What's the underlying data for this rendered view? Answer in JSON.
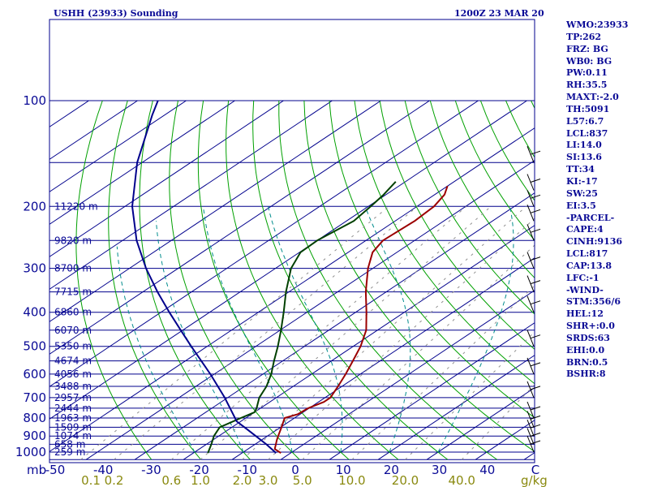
{
  "chart_data": {
    "type": "line",
    "title": "USHH (23933) Sounding",
    "time_label": "1200Z 23 MAR 20",
    "pressure_unit_label": "mb",
    "mixing_ratio_unit_label": "g/kg",
    "x_axis": "temperature (°C), skew-T",
    "y_axis": "pressure (mb), log scale",
    "xlim": [
      -50,
      50
    ],
    "ylim": [
      1050,
      100
    ],
    "temperature_ticks": [
      "-50",
      "-40",
      "-30",
      "-20",
      "-10",
      "0",
      "10",
      "20",
      "30",
      "40",
      "C"
    ],
    "mixing_ratio_ticks": [
      "0.1",
      "0.2",
      "0.6",
      "1.0",
      "2.0",
      "3.0",
      "5.0",
      "10.0",
      "20.0",
      "40.0"
    ],
    "pressure_levels": [
      "100",
      "200",
      "300",
      "400",
      "500",
      "600",
      "700",
      "800",
      "900",
      "1000"
    ],
    "height_labels": [
      {
        "p": 200,
        "label": "11220 m"
      },
      {
        "p": 250,
        "label": "9820 m"
      },
      {
        "p": 300,
        "label": "8700 m"
      },
      {
        "p": 350,
        "label": "7715 m"
      },
      {
        "p": 400,
        "label": "6860 m"
      },
      {
        "p": 450,
        "label": "6070 m"
      },
      {
        "p": 500,
        "label": "5350 m"
      },
      {
        "p": 550,
        "label": "4674 m"
      },
      {
        "p": 600,
        "label": "4056 m"
      },
      {
        "p": 650,
        "label": "3488 m"
      },
      {
        "p": 700,
        "label": "2957 m"
      },
      {
        "p": 750,
        "label": "2444 m"
      },
      {
        "p": 800,
        "label": "1963 m"
      },
      {
        "p": 850,
        "label": "1509 m"
      },
      {
        "p": 900,
        "label": "1074 m"
      },
      {
        "p": 950,
        "label": "658 m"
      },
      {
        "p": 1000,
        "label": "259 m"
      }
    ],
    "series": [
      {
        "name": "temperature",
        "color": "#9b0000",
        "points": [
          [
            1006,
            -2
          ],
          [
            980,
            -4.5
          ],
          [
            925,
            -6.8
          ],
          [
            900,
            -7.8
          ],
          [
            850,
            -9.8
          ],
          [
            800,
            -12.0
          ],
          [
            780,
            -10.5
          ],
          [
            750,
            -10.2
          ],
          [
            720,
            -8.9
          ],
          [
            700,
            -8.9
          ],
          [
            650,
            -10.8
          ],
          [
            600,
            -13.0
          ],
          [
            550,
            -15.6
          ],
          [
            500,
            -18.5
          ],
          [
            450,
            -22.3
          ],
          [
            400,
            -27.8
          ],
          [
            350,
            -34.2
          ],
          [
            300,
            -41.0
          ],
          [
            270,
            -45.0
          ],
          [
            250,
            -46.5
          ],
          [
            220,
            -46.0
          ],
          [
            200,
            -46.5
          ],
          [
            185,
            -48.0
          ],
          [
            175,
            -50.0
          ]
        ]
      },
      {
        "name": "dewpoint",
        "color": "#004000",
        "points": [
          [
            1006,
            -17
          ],
          [
            950,
            -19
          ],
          [
            900,
            -21
          ],
          [
            850,
            -22.5
          ],
          [
            800,
            -21.0
          ],
          [
            770,
            -20.0
          ],
          [
            750,
            -20.8
          ],
          [
            700,
            -23.5
          ],
          [
            650,
            -25.5
          ],
          [
            600,
            -28.3
          ],
          [
            550,
            -31.8
          ],
          [
            500,
            -35.5
          ],
          [
            450,
            -39.8
          ],
          [
            400,
            -44.8
          ],
          [
            350,
            -50.6
          ],
          [
            300,
            -56.8
          ],
          [
            270,
            -59.8
          ],
          [
            250,
            -60.0
          ],
          [
            220,
            -58.5
          ],
          [
            200,
            -59.5
          ],
          [
            185,
            -60.5
          ],
          [
            170,
            -62.0
          ]
        ]
      },
      {
        "name": "parcel",
        "color": "#00008c",
        "points": [
          [
            1006,
            -3
          ],
          [
            950,
            -7.7
          ],
          [
            900,
            -12.4
          ],
          [
            850,
            -17.4
          ],
          [
            817,
            -20.9
          ],
          [
            800,
            -22.2
          ],
          [
            700,
            -30.6
          ],
          [
            600,
            -40.8
          ],
          [
            500,
            -53.3
          ],
          [
            450,
            -60.4
          ],
          [
            400,
            -68.3
          ],
          [
            350,
            -77.0
          ],
          [
            300,
            -86.6
          ],
          [
            250,
            -97.1
          ],
          [
            200,
            -108.5
          ],
          [
            150,
            -121.0
          ],
          [
            110,
            -132.5
          ],
          [
            100,
            -135.8
          ]
        ]
      }
    ]
  },
  "params": [
    "WMO:23933",
    "TP:262",
    "FRZ: BG",
    "WB0: BG",
    "PW:0.11",
    "RH:35.5",
    "MAXT:-2.0",
    "TH:5091",
    "L57:6.7",
    "LCL:837",
    "LI:14.0",
    "SI:13.6",
    "TT:34",
    "KI:-17",
    "SW:25",
    "EI:3.5",
    "-PARCEL-",
    "CAPE:4",
    "CINH:9136",
    "LCL:817",
    "CAP:13.8",
    "LFC:-1",
    "-WIND-",
    "STM:356/6",
    "HEL:12",
    "SHR+:0.0",
    "SRDS:63",
    "EHI:0.0",
    "BRN:0.5",
    "BSHR:8"
  ],
  "colors": {
    "frame": "#00008c",
    "isobar": "#00008c",
    "isotherm": "#00008c",
    "dry_adiabat": "#00a000",
    "moist_adiabat": "#008c8c",
    "mixing_ratio": "#909090",
    "temperature": "#9b0000",
    "dewpoint": "#004000",
    "parcel": "#00008c",
    "label_blue": "#0a0a96",
    "label_olive": "#8a8a10"
  }
}
